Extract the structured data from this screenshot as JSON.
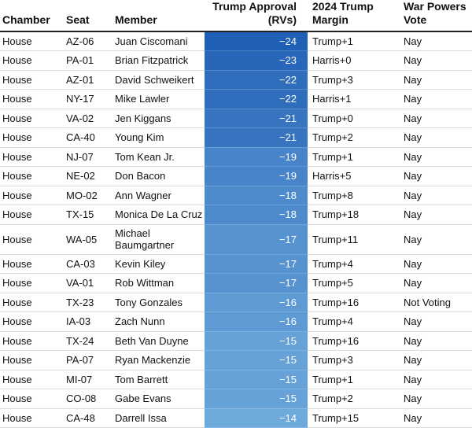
{
  "columns": {
    "chamber": "Chamber",
    "seat": "Seat",
    "member": "Member",
    "approval": "Trump Approval (RVs)",
    "margin": "2024 Trump Margin",
    "vote": "War Powers Vote"
  },
  "rows": [
    {
      "chamber": "House",
      "seat": "AZ-06",
      "member": "Juan Ciscomani",
      "approval": "−24",
      "approval_value": -24,
      "margin": "Trump+1",
      "vote": "Nay"
    },
    {
      "chamber": "House",
      "seat": "PA-01",
      "member": "Brian Fitzpatrick",
      "approval": "−23",
      "approval_value": -23,
      "margin": "Harris+0",
      "vote": "Nay"
    },
    {
      "chamber": "House",
      "seat": "AZ-01",
      "member": "David Schweikert",
      "approval": "−22",
      "approval_value": -22,
      "margin": "Trump+3",
      "vote": "Nay"
    },
    {
      "chamber": "House",
      "seat": "NY-17",
      "member": "Mike Lawler",
      "approval": "−22",
      "approval_value": -22,
      "margin": "Harris+1",
      "vote": "Nay"
    },
    {
      "chamber": "House",
      "seat": "VA-02",
      "member": "Jen Kiggans",
      "approval": "−21",
      "approval_value": -21,
      "margin": "Trump+0",
      "vote": "Nay"
    },
    {
      "chamber": "House",
      "seat": "CA-40",
      "member": "Young Kim",
      "approval": "−21",
      "approval_value": -21,
      "margin": "Trump+2",
      "vote": "Nay"
    },
    {
      "chamber": "House",
      "seat": "NJ-07",
      "member": "Tom Kean Jr.",
      "approval": "−19",
      "approval_value": -19,
      "margin": "Trump+1",
      "vote": "Nay"
    },
    {
      "chamber": "House",
      "seat": "NE-02",
      "member": "Don Bacon",
      "approval": "−19",
      "approval_value": -19,
      "margin": "Harris+5",
      "vote": "Nay"
    },
    {
      "chamber": "House",
      "seat": "MO-02",
      "member": "Ann Wagner",
      "approval": "−18",
      "approval_value": -18,
      "margin": "Trump+8",
      "vote": "Nay"
    },
    {
      "chamber": "House",
      "seat": "TX-15",
      "member": "Monica De La Cruz",
      "approval": "−18",
      "approval_value": -18,
      "margin": "Trump+18",
      "vote": "Nay"
    },
    {
      "chamber": "House",
      "seat": "WA-05",
      "member": "Michael Baumgartner",
      "approval": "−17",
      "approval_value": -17,
      "margin": "Trump+11",
      "vote": "Nay"
    },
    {
      "chamber": "House",
      "seat": "CA-03",
      "member": "Kevin Kiley",
      "approval": "−17",
      "approval_value": -17,
      "margin": "Trump+4",
      "vote": "Nay"
    },
    {
      "chamber": "House",
      "seat": "VA-01",
      "member": "Rob Wittman",
      "approval": "−17",
      "approval_value": -17,
      "margin": "Trump+5",
      "vote": "Nay"
    },
    {
      "chamber": "House",
      "seat": "TX-23",
      "member": "Tony Gonzales",
      "approval": "−16",
      "approval_value": -16,
      "margin": "Trump+16",
      "vote": "Not Voting"
    },
    {
      "chamber": "House",
      "seat": "IA-03",
      "member": "Zach Nunn",
      "approval": "−16",
      "approval_value": -16,
      "margin": "Trump+4",
      "vote": "Nay"
    },
    {
      "chamber": "House",
      "seat": "TX-24",
      "member": "Beth Van Duyne",
      "approval": "−15",
      "approval_value": -15,
      "margin": "Trump+16",
      "vote": "Nay"
    },
    {
      "chamber": "House",
      "seat": "PA-07",
      "member": "Ryan Mackenzie",
      "approval": "−15",
      "approval_value": -15,
      "margin": "Trump+3",
      "vote": "Nay"
    },
    {
      "chamber": "House",
      "seat": "MI-07",
      "member": "Tom Barrett",
      "approval": "−15",
      "approval_value": -15,
      "margin": "Trump+1",
      "vote": "Nay"
    },
    {
      "chamber": "House",
      "seat": "CO-08",
      "member": "Gabe Evans",
      "approval": "−15",
      "approval_value": -15,
      "margin": "Trump+2",
      "vote": "Nay"
    },
    {
      "chamber": "House",
      "seat": "CA-48",
      "member": "Darrell Issa",
      "approval": "−14",
      "approval_value": -14,
      "margin": "Trump+15",
      "vote": "Nay"
    }
  ],
  "colors": {
    "approval_dark": "#1f5fb5",
    "approval_light": "#6ea9dc"
  }
}
